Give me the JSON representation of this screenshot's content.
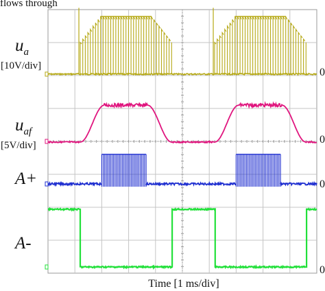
{
  "header_fragment": "flows through",
  "chart_data": {
    "type": "line",
    "title": "",
    "xlabel": "Time [1 ms/div]",
    "x_unit": "ms",
    "xlim": [
      0,
      10
    ],
    "x_divisions": 10,
    "y_divisions": 8,
    "grid": true,
    "legend": "none",
    "series": [
      {
        "id": "ua",
        "name": "u_a",
        "name_base": "u",
        "name_sub": "a",
        "scale": "[10V/div]",
        "zero_label": "0",
        "color": "#b5a814",
        "units_per_div": 10,
        "waveform": "PWM pulse train with trapezoidal envelope",
        "baseline_div": 1.3,
        "peak_div": 1.75,
        "on_intervals_ms": [
          [
            1.2,
            4.6
          ],
          [
            6.2,
            9.6
          ]
        ]
      },
      {
        "id": "uaf",
        "name": "u_af",
        "name_base": "u",
        "name_sub": "af",
        "scale": "[5V/div]",
        "zero_label": "0",
        "color": "#e0157e",
        "units_per_div": 5,
        "waveform": "filtered trapezoid",
        "baseline_div": 0.9,
        "peak_div": 1.9,
        "rise_ms": [
          [
            1.2,
            2.1
          ],
          [
            6.2,
            7.1
          ]
        ],
        "flat_ms": [
          [
            2.1,
            3.7
          ],
          [
            7.1,
            8.7
          ]
        ],
        "fall_ms": [
          [
            3.7,
            4.6
          ],
          [
            8.7,
            9.6
          ]
        ]
      },
      {
        "id": "aplus",
        "name": "A+",
        "name_base": "A+",
        "name_sub": "",
        "scale": "",
        "zero_label": "0",
        "color": "#1f2fd0",
        "waveform": "gate pulses",
        "baseline_div": 0,
        "pulse_div": 0.9,
        "on_intervals_ms": [
          [
            2.0,
            3.65
          ],
          [
            7.0,
            8.65
          ]
        ]
      },
      {
        "id": "aminus",
        "name": "A-",
        "name_base": "A-",
        "name_sub": "",
        "scale": "",
        "zero_label": "0",
        "color": "#22e03a",
        "waveform": "logic level",
        "low_div": 0,
        "high_div": 1.75,
        "high_intervals_ms": [
          [
            0,
            1.2
          ],
          [
            4.6,
            6.2
          ],
          [
            9.6,
            10
          ]
        ]
      }
    ]
  }
}
